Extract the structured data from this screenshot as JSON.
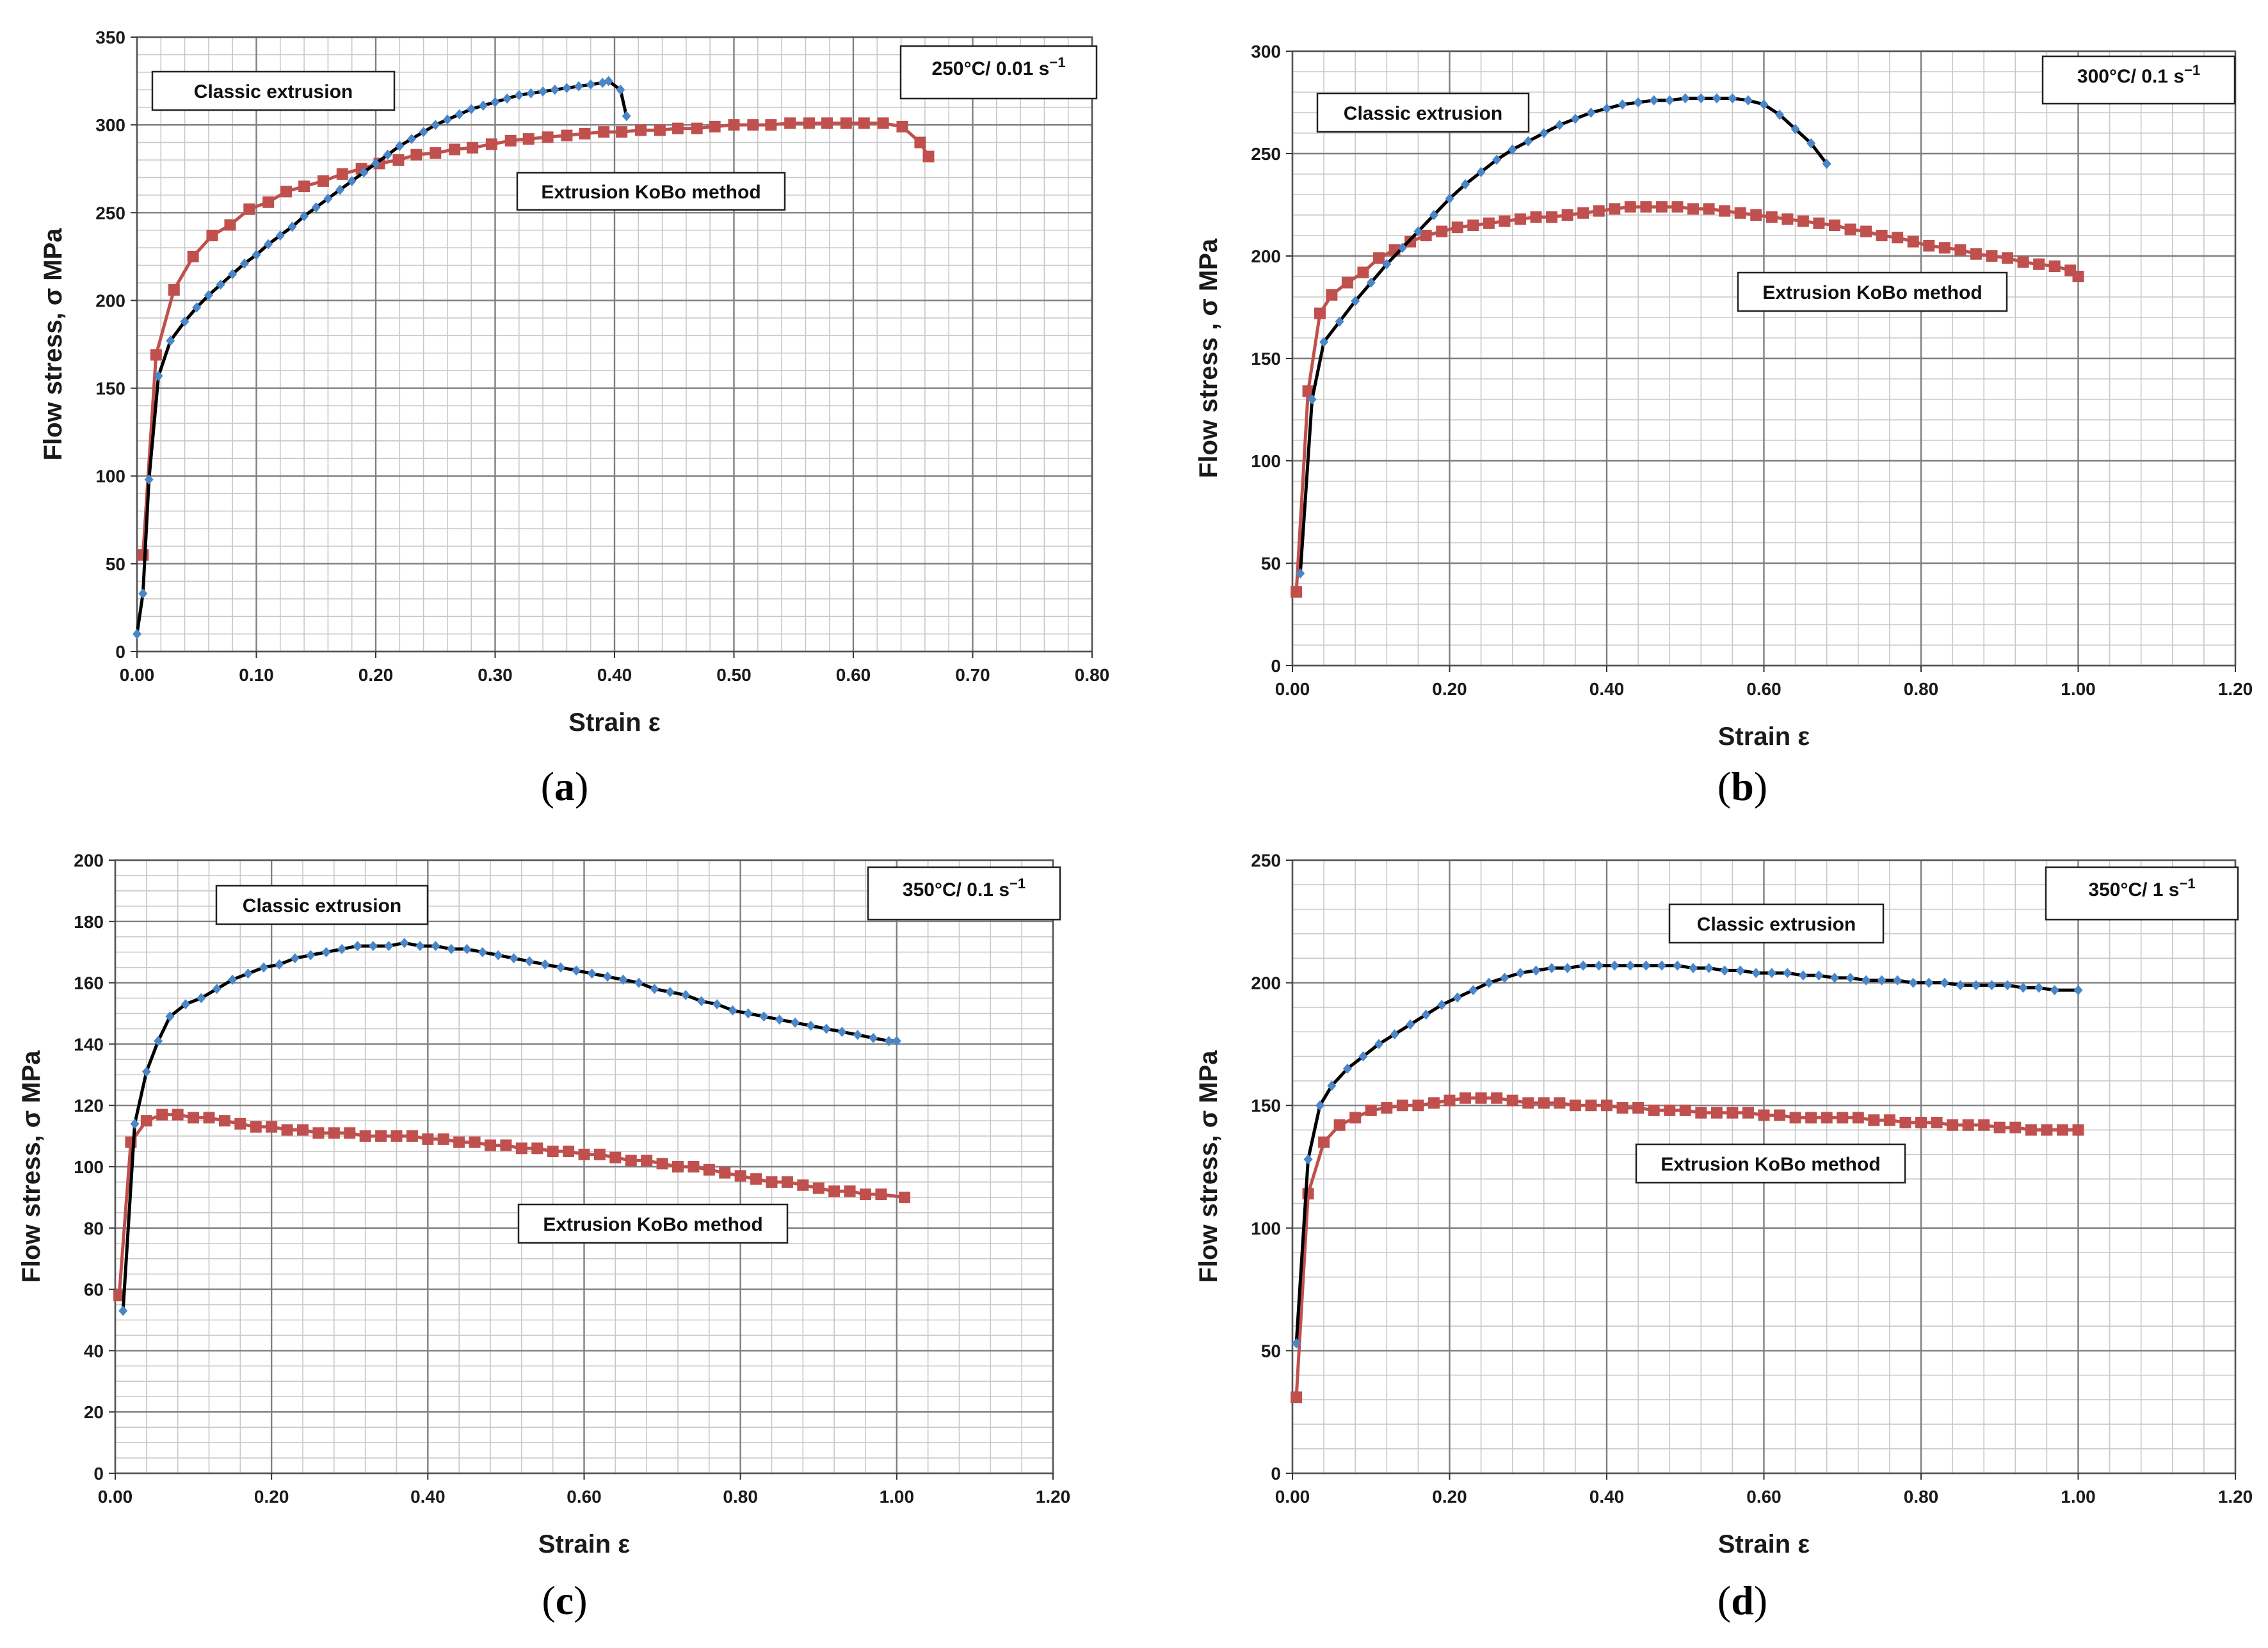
{
  "colors": {
    "classic_marker": "#4a86c8",
    "classic_line": "#000000",
    "kobo": "#c0504d",
    "grid_major": "#7f7f7f",
    "grid_minor": "#c8c8c8"
  },
  "chart_data": [
    {
      "type": "line",
      "panel_label": "(a)",
      "condition": "250°C/ 0.01 s",
      "condition_exp": "−1",
      "xlabel": "Strain  ε",
      "ylabel": "Flow stress, σ MPa",
      "xlim": [
        0,
        0.8
      ],
      "ylim": [
        0,
        350
      ],
      "xticks": [
        "0.00",
        "0.10",
        "0.20",
        "0.30",
        "0.40",
        "0.50",
        "0.60",
        "0.70",
        "0.80"
      ],
      "yticks": [
        "0",
        "50",
        "100",
        "150",
        "200",
        "250",
        "300",
        "350"
      ],
      "series": [
        {
          "name": "Classic extrusion",
          "x": [
            0.0,
            0.005,
            0.01,
            0.018,
            0.028,
            0.04,
            0.05,
            0.06,
            0.07,
            0.08,
            0.09,
            0.1,
            0.11,
            0.12,
            0.13,
            0.14,
            0.15,
            0.16,
            0.17,
            0.18,
            0.19,
            0.2,
            0.21,
            0.22,
            0.23,
            0.24,
            0.25,
            0.26,
            0.27,
            0.28,
            0.29,
            0.3,
            0.31,
            0.32,
            0.33,
            0.34,
            0.35,
            0.36,
            0.37,
            0.38,
            0.39,
            0.395,
            0.405,
            0.41
          ],
          "y": [
            10,
            33,
            98,
            157,
            177,
            188,
            196,
            203,
            209,
            215,
            221,
            226,
            232,
            237,
            242,
            248,
            253,
            258,
            263,
            268,
            273,
            278,
            283,
            288,
            292,
            296,
            300,
            303,
            306,
            309,
            311,
            313,
            315,
            317,
            318,
            319,
            320,
            321,
            322,
            323,
            324,
            325,
            320,
            305
          ]
        },
        {
          "name": "Extrusion KoBo method",
          "x": [
            0.005,
            0.016,
            0.031,
            0.047,
            0.063,
            0.078,
            0.094,
            0.11,
            0.125,
            0.14,
            0.156,
            0.172,
            0.188,
            0.203,
            0.219,
            0.234,
            0.25,
            0.266,
            0.281,
            0.297,
            0.313,
            0.328,
            0.344,
            0.36,
            0.375,
            0.391,
            0.406,
            0.422,
            0.438,
            0.453,
            0.469,
            0.484,
            0.5,
            0.516,
            0.531,
            0.547,
            0.563,
            0.578,
            0.594,
            0.609,
            0.625,
            0.641,
            0.656,
            0.663
          ],
          "y": [
            55,
            169,
            206,
            225,
            237,
            243,
            252,
            256,
            262,
            265,
            268,
            272,
            275,
            278,
            280,
            283,
            284,
            286,
            287,
            289,
            291,
            292,
            293,
            294,
            295,
            296,
            296,
            297,
            297,
            298,
            298,
            299,
            300,
            300,
            300,
            301,
            301,
            301,
            301,
            301,
            301,
            299,
            290,
            282
          ]
        }
      ]
    },
    {
      "type": "line",
      "panel_label": "(b)",
      "condition": "300°C/ 0.1 s",
      "condition_exp": "−1",
      "xlabel": "Strain  ε",
      "ylabel": "Flow stress , σ MPa",
      "xlim": [
        0,
        1.2
      ],
      "ylim": [
        0,
        300
      ],
      "xticks": [
        "0.00",
        "0.20",
        "0.40",
        "0.60",
        "0.80",
        "1.00",
        "1.20"
      ],
      "yticks": [
        "0",
        "50",
        "100",
        "150",
        "200",
        "250",
        "300"
      ],
      "series": [
        {
          "name": "Classic extrusion",
          "x": [
            0.01,
            0.025,
            0.04,
            0.06,
            0.08,
            0.1,
            0.12,
            0.14,
            0.16,
            0.18,
            0.2,
            0.22,
            0.24,
            0.26,
            0.28,
            0.3,
            0.32,
            0.34,
            0.36,
            0.38,
            0.4,
            0.42,
            0.44,
            0.46,
            0.48,
            0.5,
            0.52,
            0.54,
            0.56,
            0.58,
            0.6,
            0.62,
            0.64,
            0.66,
            0.68
          ],
          "y": [
            45,
            130,
            158,
            168,
            178,
            187,
            196,
            204,
            212,
            220,
            228,
            235,
            241,
            247,
            252,
            256,
            260,
            264,
            267,
            270,
            272,
            274,
            275,
            276,
            276,
            277,
            277,
            277,
            277,
            276,
            274,
            269,
            262,
            255,
            245
          ]
        },
        {
          "name": "Extrusion KoBo method",
          "x": [
            0.005,
            0.02,
            0.035,
            0.05,
            0.07,
            0.09,
            0.11,
            0.13,
            0.15,
            0.17,
            0.19,
            0.21,
            0.23,
            0.25,
            0.27,
            0.29,
            0.31,
            0.33,
            0.35,
            0.37,
            0.39,
            0.41,
            0.43,
            0.45,
            0.47,
            0.49,
            0.51,
            0.53,
            0.55,
            0.57,
            0.59,
            0.61,
            0.63,
            0.65,
            0.67,
            0.69,
            0.71,
            0.73,
            0.75,
            0.77,
            0.79,
            0.81,
            0.83,
            0.85,
            0.87,
            0.89,
            0.91,
            0.93,
            0.95,
            0.97,
            0.99,
            1.0
          ],
          "y": [
            36,
            134,
            172,
            181,
            187,
            192,
            199,
            203,
            207,
            210,
            212,
            214,
            215,
            216,
            217,
            218,
            219,
            219,
            220,
            221,
            222,
            223,
            224,
            224,
            224,
            224,
            223,
            223,
            222,
            221,
            220,
            219,
            218,
            217,
            216,
            215,
            213,
            212,
            210,
            209,
            207,
            205,
            204,
            203,
            201,
            200,
            199,
            197,
            196,
            195,
            193,
            190
          ]
        }
      ]
    },
    {
      "type": "line",
      "panel_label": "(c)",
      "condition": "350°C/ 0.1 s",
      "condition_exp": "−1",
      "xlabel": "Strain  ε",
      "ylabel": "Flow stress, σ MPa",
      "xlim": [
        0,
        1.2
      ],
      "ylim": [
        0,
        200
      ],
      "xticks": [
        "0.00",
        "0.20",
        "0.40",
        "0.60",
        "0.80",
        "1.00",
        "1.20"
      ],
      "yticks": [
        "0",
        "20",
        "40",
        "60",
        "80",
        "100",
        "120",
        "140",
        "160",
        "180",
        "200"
      ],
      "series": [
        {
          "name": "Classic extrusion",
          "x": [
            0.01,
            0.025,
            0.04,
            0.055,
            0.07,
            0.09,
            0.11,
            0.13,
            0.15,
            0.17,
            0.19,
            0.21,
            0.23,
            0.25,
            0.27,
            0.29,
            0.31,
            0.33,
            0.35,
            0.37,
            0.39,
            0.41,
            0.43,
            0.45,
            0.47,
            0.49,
            0.51,
            0.53,
            0.55,
            0.57,
            0.59,
            0.61,
            0.63,
            0.65,
            0.67,
            0.69,
            0.71,
            0.73,
            0.75,
            0.77,
            0.79,
            0.81,
            0.83,
            0.85,
            0.87,
            0.89,
            0.91,
            0.93,
            0.95,
            0.97,
            0.99,
            1.0
          ],
          "y": [
            53,
            114,
            131,
            141,
            149,
            153,
            155,
            158,
            161,
            163,
            165,
            166,
            168,
            169,
            170,
            171,
            172,
            172,
            172,
            173,
            172,
            172,
            171,
            171,
            170,
            169,
            168,
            167,
            166,
            165,
            164,
            163,
            162,
            161,
            160,
            158,
            157,
            156,
            154,
            153,
            151,
            150,
            149,
            148,
            147,
            146,
            145,
            144,
            143,
            142,
            141,
            141
          ]
        },
        {
          "name": "Extrusion KoBo method",
          "x": [
            0.005,
            0.02,
            0.04,
            0.06,
            0.08,
            0.1,
            0.12,
            0.14,
            0.16,
            0.18,
            0.2,
            0.22,
            0.24,
            0.26,
            0.28,
            0.3,
            0.32,
            0.34,
            0.36,
            0.38,
            0.4,
            0.42,
            0.44,
            0.46,
            0.48,
            0.5,
            0.52,
            0.54,
            0.56,
            0.58,
            0.6,
            0.62,
            0.64,
            0.66,
            0.68,
            0.7,
            0.72,
            0.74,
            0.76,
            0.78,
            0.8,
            0.82,
            0.84,
            0.86,
            0.88,
            0.9,
            0.92,
            0.94,
            0.96,
            0.98,
            1.01
          ],
          "y": [
            58,
            108,
            115,
            117,
            117,
            116,
            116,
            115,
            114,
            113,
            113,
            112,
            112,
            111,
            111,
            111,
            110,
            110,
            110,
            110,
            109,
            109,
            108,
            108,
            107,
            107,
            106,
            106,
            105,
            105,
            104,
            104,
            103,
            102,
            102,
            101,
            100,
            100,
            99,
            98,
            97,
            96,
            95,
            95,
            94,
            93,
            92,
            92,
            91,
            91,
            90
          ]
        }
      ]
    },
    {
      "type": "line",
      "panel_label": "(d)",
      "condition": "350°C/ 1 s",
      "condition_exp": "−1",
      "xlabel": "Strain  ε",
      "ylabel": "Flow stress, σ MPa",
      "xlim": [
        0,
        1.2
      ],
      "ylim": [
        0,
        250
      ],
      "xticks": [
        "0.00",
        "0.20",
        "0.40",
        "0.60",
        "0.80",
        "1.00",
        "1.20"
      ],
      "yticks": [
        "0",
        "50",
        "100",
        "150",
        "200",
        "250"
      ],
      "series": [
        {
          "name": "Classic extrusion",
          "x": [
            0.005,
            0.02,
            0.035,
            0.05,
            0.07,
            0.09,
            0.11,
            0.13,
            0.15,
            0.17,
            0.19,
            0.21,
            0.23,
            0.25,
            0.27,
            0.29,
            0.31,
            0.33,
            0.35,
            0.37,
            0.39,
            0.41,
            0.43,
            0.45,
            0.47,
            0.49,
            0.51,
            0.53,
            0.55,
            0.57,
            0.59,
            0.61,
            0.63,
            0.65,
            0.67,
            0.69,
            0.71,
            0.73,
            0.75,
            0.77,
            0.79,
            0.81,
            0.83,
            0.85,
            0.87,
            0.89,
            0.91,
            0.93,
            0.95,
            0.97,
            1.0
          ],
          "y": [
            53,
            128,
            150,
            158,
            165,
            170,
            175,
            179,
            183,
            187,
            191,
            194,
            197,
            200,
            202,
            204,
            205,
            206,
            206,
            207,
            207,
            207,
            207,
            207,
            207,
            207,
            206,
            206,
            205,
            205,
            204,
            204,
            204,
            203,
            203,
            202,
            202,
            201,
            201,
            201,
            200,
            200,
            200,
            199,
            199,
            199,
            199,
            198,
            198,
            197,
            197
          ]
        },
        {
          "name": "Extrusion KoBo method",
          "x": [
            0.005,
            0.02,
            0.04,
            0.06,
            0.08,
            0.1,
            0.12,
            0.14,
            0.16,
            0.18,
            0.2,
            0.22,
            0.24,
            0.26,
            0.28,
            0.3,
            0.32,
            0.34,
            0.36,
            0.38,
            0.4,
            0.42,
            0.44,
            0.46,
            0.48,
            0.5,
            0.52,
            0.54,
            0.56,
            0.58,
            0.6,
            0.62,
            0.64,
            0.66,
            0.68,
            0.7,
            0.72,
            0.74,
            0.76,
            0.78,
            0.8,
            0.82,
            0.84,
            0.86,
            0.88,
            0.9,
            0.92,
            0.94,
            0.96,
            0.98,
            1.0
          ],
          "y": [
            31,
            114,
            135,
            142,
            145,
            148,
            149,
            150,
            150,
            151,
            152,
            153,
            153,
            153,
            152,
            151,
            151,
            151,
            150,
            150,
            150,
            149,
            149,
            148,
            148,
            148,
            147,
            147,
            147,
            147,
            146,
            146,
            145,
            145,
            145,
            145,
            145,
            144,
            144,
            143,
            143,
            143,
            142,
            142,
            142,
            141,
            141,
            140,
            140,
            140,
            140
          ]
        }
      ]
    }
  ]
}
